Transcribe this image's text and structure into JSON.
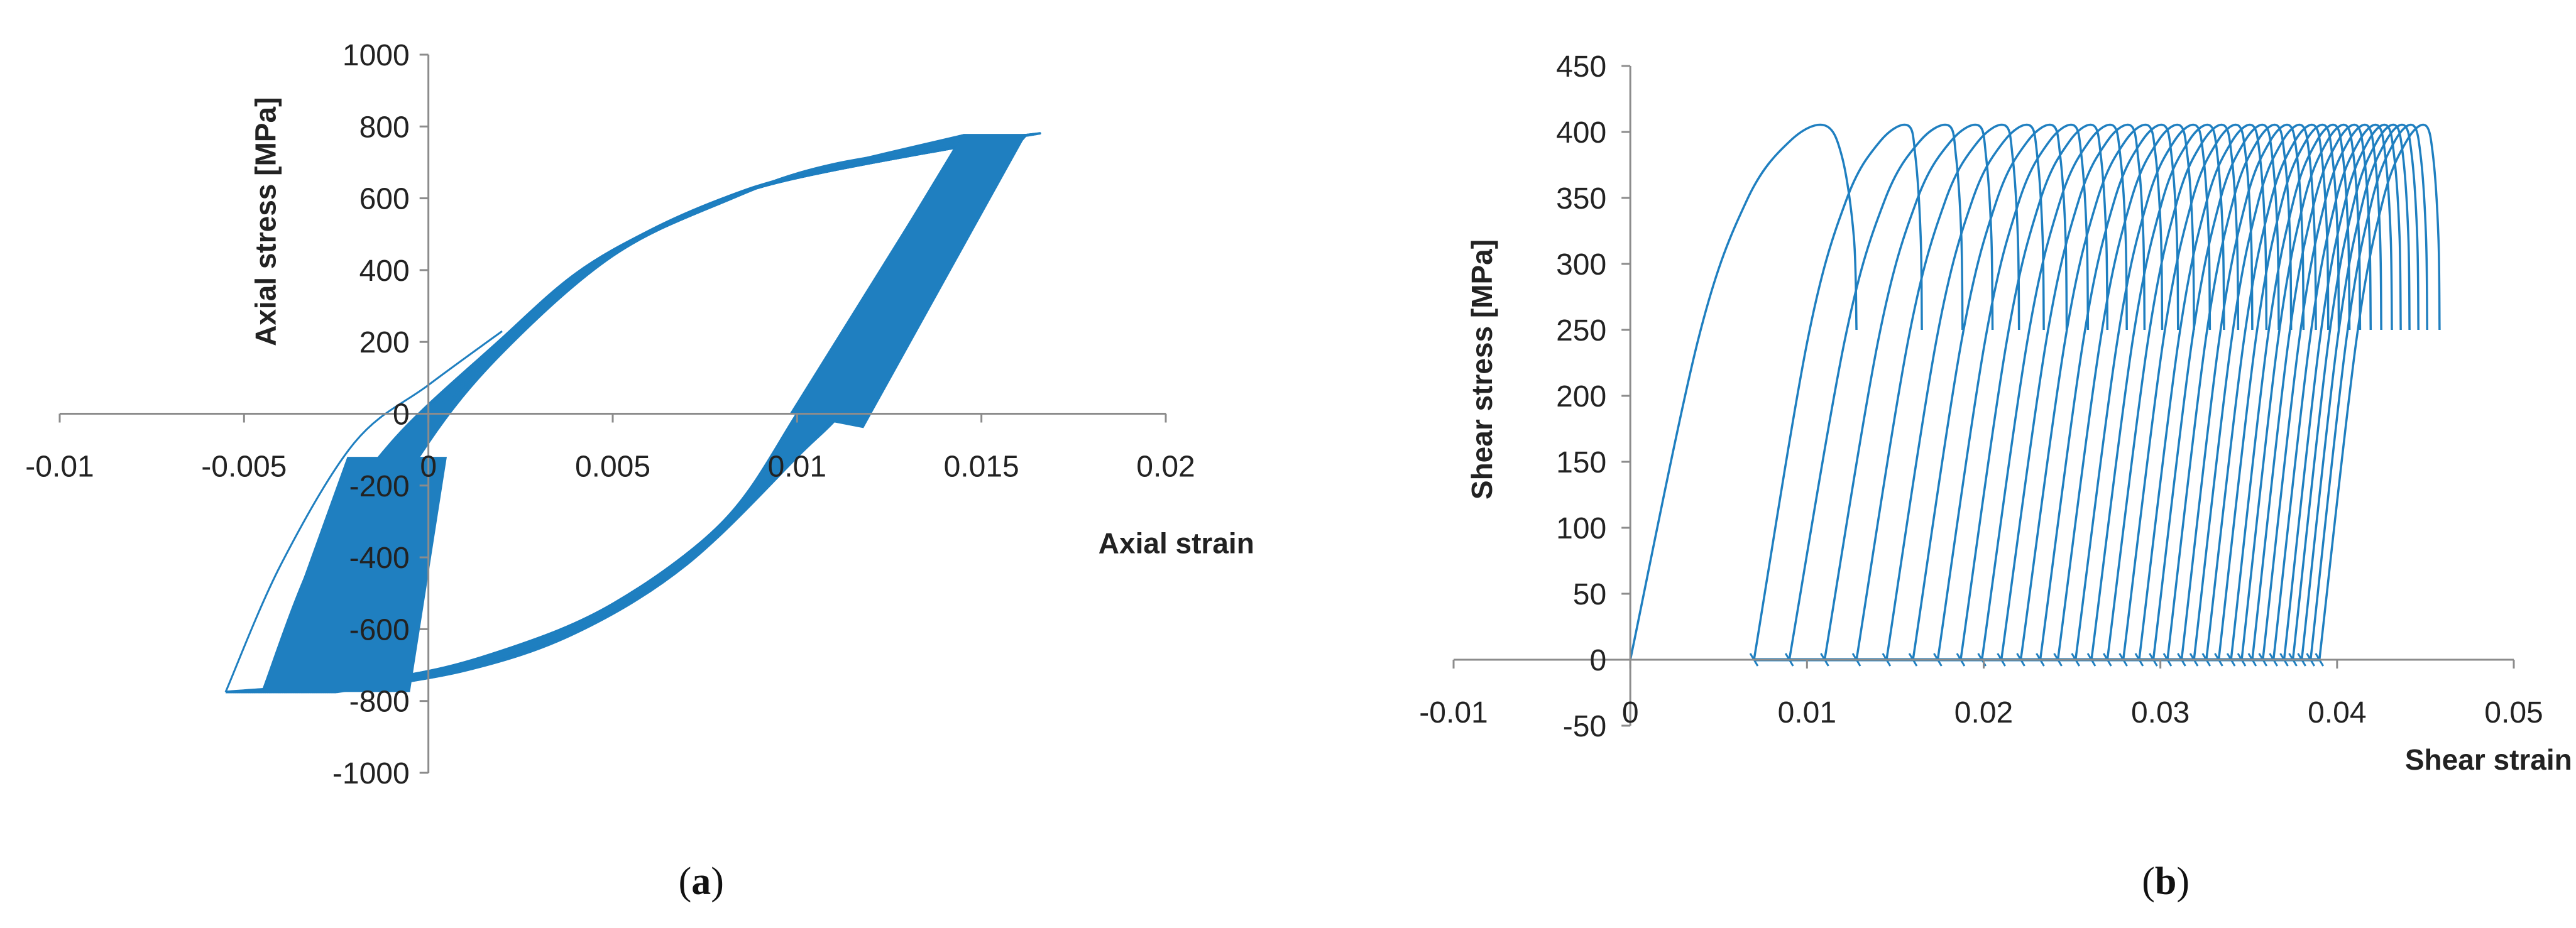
{
  "chart_data": [
    {
      "panel": "(a)",
      "panel_letter": "a",
      "type": "line",
      "title": "",
      "xlabel": "Axial strain",
      "ylabel": "Axial stress [MPa]",
      "xlim": [
        -0.01,
        0.02
      ],
      "ylim": [
        -1000,
        1000
      ],
      "x_ticks": [
        -0.01,
        -0.005,
        0,
        0.005,
        0.01,
        0.015,
        0.02
      ],
      "x_tick_labels": [
        "-0.01",
        "-0.005",
        "0",
        "0.005",
        "0.01",
        "0.015",
        "0.02"
      ],
      "y_ticks": [
        -1000,
        -800,
        -600,
        -400,
        -200,
        0,
        200,
        400,
        600,
        800,
        1000
      ],
      "y_tick_labels": [
        "-1000",
        "-800",
        "-600",
        "-400",
        "-200",
        "0",
        "200",
        "400",
        "600",
        "800",
        "1000"
      ],
      "grid": false,
      "legend": "none",
      "color": "#1f7fc0",
      "series": [
        {
          "description_points": "hysteresis loops (ratcheting)",
          "first_loop": {
            "loading": [
              [
                0,
                0
              ],
              [
                0.002,
                210
              ],
              [
                0.004,
                390
              ],
              [
                0.006,
                510
              ],
              [
                0.008,
                600
              ],
              [
                0.01,
                665
              ],
              [
                0.012,
                715
              ],
              [
                0.0145,
                775
              ]
            ],
            "unloading": [
              [
                0.0145,
                775
              ],
              [
                0.012,
                350
              ],
              [
                0.01,
                0
              ],
              [
                0.008,
                -300
              ],
              [
                0.005,
                -530
              ],
              [
                0.002,
                -660
              ],
              [
                -0.001,
                -735
              ],
              [
                -0.0055,
                -775
              ]
            ],
            "reloading": [
              [
                -0.0055,
                -775
              ],
              [
                -0.004,
                -420
              ],
              [
                -0.002,
                -80
              ],
              [
                0,
                80
              ],
              [
                0.002,
                230
              ]
            ]
          },
          "last_loop": {
            "loading": [
              [
                -0.0025,
                -775
              ],
              [
                -0.0015,
                -360
              ],
              [
                0,
                -80
              ],
              [
                0.002,
                170
              ],
              [
                0.005,
                440
              ],
              [
                0.008,
                590
              ],
              [
                0.011,
                695
              ],
              [
                0.0162,
                775
              ]
            ],
            "unloading": [
              [
                0.0162,
                775
              ],
              [
                0.013,
                390
              ],
              [
                0.0115,
                50
              ],
              [
                0.01,
                -120
              ],
              [
                0.007,
                -420
              ],
              [
                0.004,
                -610
              ],
              [
                0.001,
                -715
              ],
              [
                -0.0025,
                -775
              ]
            ]
          },
          "envelope_upper_right": [
            0.0162,
            775
          ],
          "envelope_lower_left": [
            -0.0055,
            -775
          ]
        }
      ]
    },
    {
      "panel": "(b)",
      "panel_letter": "b",
      "type": "line",
      "title": "",
      "xlabel": "Shear strain",
      "ylabel": "Shear stress [MPa]",
      "xlim": [
        -0.01,
        0.05
      ],
      "ylim": [
        -50,
        450
      ],
      "x_ticks": [
        -0.01,
        0,
        0.01,
        0.02,
        0.03,
        0.04,
        0.05
      ],
      "x_tick_labels": [
        "-0.01",
        "0",
        "0.01",
        "0.02",
        "0.03",
        "0.04",
        "0.05"
      ],
      "y_ticks": [
        -50,
        0,
        50,
        100,
        150,
        200,
        250,
        300,
        350,
        400,
        450
      ],
      "y_tick_labels": [
        "-50",
        "0",
        "50",
        "100",
        "150",
        "200",
        "250",
        "300",
        "350",
        "400",
        "450"
      ],
      "grid": false,
      "legend": "none",
      "color": "#1f7fc0",
      "series": [
        {
          "peak_stress": 405,
          "loop_starts": [
            0,
            0.007,
            0.009,
            0.011,
            0.0128,
            0.0145,
            0.016,
            0.0174,
            0.0187,
            0.0199,
            0.021,
            0.0221,
            0.0232,
            0.0242,
            0.0252,
            0.0261,
            0.027,
            0.0279,
            0.0288,
            0.0296,
            0.0304,
            0.0312,
            0.0319,
            0.0326,
            0.0333,
            0.034,
            0.0346,
            0.0352,
            0.0358,
            0.0364,
            0.037,
            0.0375,
            0.038,
            0.0385,
            0.039
          ],
          "loop_peaks": [
            0.011,
            0.0157,
            0.018,
            0.0197,
            0.0212,
            0.0226,
            0.0239,
            0.0251,
            0.0262,
            0.0273,
            0.0283,
            0.0293,
            0.0302,
            0.0311,
            0.032,
            0.0328,
            0.0336,
            0.0344,
            0.0352,
            0.0359,
            0.0366,
            0.0373,
            0.038,
            0.0387,
            0.0393,
            0.0399,
            0.0405,
            0.0411,
            0.0417,
            0.0423,
            0.0428,
            0.0433,
            0.0438,
            0.0443,
            0.045
          ],
          "loop_ends": [
            0.0128,
            0.0165,
            0.0188,
            0.0205,
            0.022,
            0.0234,
            0.0247,
            0.0259,
            0.027,
            0.0281,
            0.0291,
            0.0301,
            0.031,
            0.0319,
            0.0328,
            0.0336,
            0.0344,
            0.0352,
            0.036,
            0.0367,
            0.0374,
            0.0381,
            0.0388,
            0.0395,
            0.0401,
            0.0407,
            0.0413,
            0.0419,
            0.0425,
            0.0431,
            0.0436,
            0.0441,
            0.0446,
            0.0451,
            0.0458
          ],
          "loop_end_stress": 250
        }
      ]
    }
  ]
}
